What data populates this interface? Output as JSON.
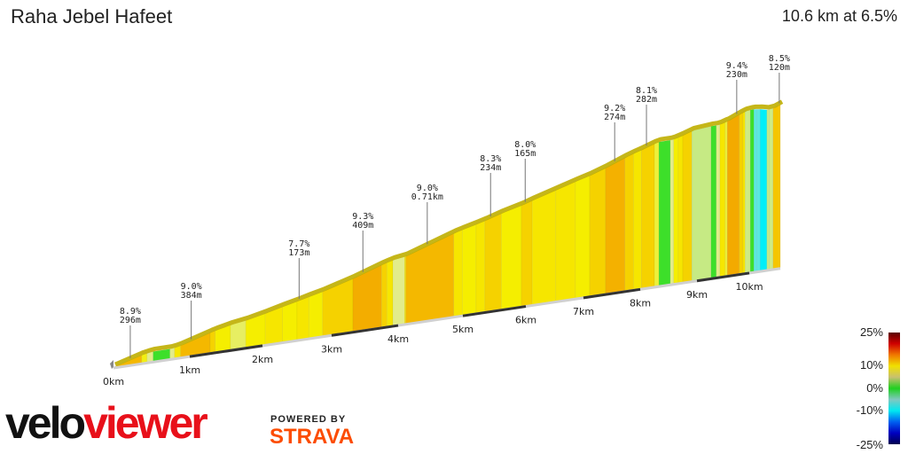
{
  "header": {
    "title": "Raha Jebel Hafeet",
    "summary": "10.6 km at 6.5%"
  },
  "branding": {
    "velo": "velo",
    "viewer": "viewer",
    "powered_by": "POWERED BY",
    "strava": "STRAVA",
    "strava_color": "#fc4c02",
    "viewer_color": "#e8101a"
  },
  "legend": {
    "labels": [
      "25%",
      "10%",
      "0%",
      "-10%",
      "-25%"
    ],
    "gradient_colors": [
      "#5a0000",
      "#d00000",
      "#f07800",
      "#f0e000",
      "#c8c070",
      "#20d020",
      "#80c8c0",
      "#00e8f0",
      "#0060f0",
      "#0000c0",
      "#000050"
    ]
  },
  "chart_data": {
    "type": "area",
    "title": "Raha Jebel Hafeet",
    "x_unit": "km",
    "x_ticks": [
      "0km",
      "1km",
      "2km",
      "3km",
      "4km",
      "5km",
      "6km",
      "7km",
      "8km",
      "9km",
      "10km"
    ],
    "xlim": [
      0,
      10.6
    ],
    "total_distance_km": 10.6,
    "average_gradient_pct": 6.5,
    "color_scale": [
      [
        -5,
        "#00eef8"
      ],
      [
        -3,
        "#5ae8e0"
      ],
      [
        0,
        "#3ddf2a"
      ],
      [
        2,
        "#c6ea84"
      ],
      [
        4,
        "#e2ec8a"
      ],
      [
        5,
        "#ecf03a"
      ],
      [
        6.5,
        "#f5ee00"
      ],
      [
        7,
        "#f6e600"
      ],
      [
        8,
        "#f5d200"
      ],
      [
        9,
        "#f4b800"
      ],
      [
        10,
        "#f29400"
      ]
    ],
    "segments_km_gradient": [
      [
        0,
        0.37,
        9
      ],
      [
        0.37,
        0.44,
        6
      ],
      [
        0.44,
        0.52,
        4
      ],
      [
        0.52,
        0.74,
        0
      ],
      [
        0.74,
        0.8,
        4
      ],
      [
        0.8,
        0.88,
        7
      ],
      [
        0.88,
        1.28,
        9
      ],
      [
        1.28,
        1.35,
        8
      ],
      [
        1.35,
        1.56,
        6.5
      ],
      [
        1.56,
        1.77,
        4.5
      ],
      [
        1.77,
        2.04,
        6.5
      ],
      [
        2.04,
        2.29,
        7
      ],
      [
        2.29,
        2.5,
        6.5
      ],
      [
        2.5,
        2.67,
        7
      ],
      [
        2.67,
        2.87,
        6.5
      ],
      [
        2.87,
        3.32,
        8
      ],
      [
        3.32,
        3.75,
        9.3
      ],
      [
        3.75,
        3.83,
        8
      ],
      [
        3.83,
        3.92,
        7
      ],
      [
        3.92,
        4.1,
        4
      ],
      [
        4.1,
        4.12,
        7
      ],
      [
        4.12,
        4.86,
        9
      ],
      [
        4.86,
        4.99,
        7
      ],
      [
        4.99,
        5.21,
        6.5
      ],
      [
        5.21,
        5.35,
        7
      ],
      [
        5.35,
        5.61,
        8
      ],
      [
        5.61,
        5.93,
        6.5
      ],
      [
        5.93,
        6.11,
        8
      ],
      [
        6.11,
        6.52,
        7
      ],
      [
        6.52,
        6.86,
        7
      ],
      [
        6.86,
        7.11,
        6.5
      ],
      [
        7.11,
        7.39,
        8
      ],
      [
        7.39,
        7.73,
        9.2
      ],
      [
        7.73,
        7.88,
        8
      ],
      [
        7.88,
        8.02,
        7
      ],
      [
        8.02,
        8.25,
        8
      ],
      [
        8.25,
        8.33,
        5
      ],
      [
        8.33,
        8.53,
        0
      ],
      [
        8.53,
        8.59,
        4
      ],
      [
        8.59,
        8.67,
        6.5
      ],
      [
        8.67,
        8.75,
        7
      ],
      [
        8.75,
        8.91,
        8
      ],
      [
        8.91,
        9.27,
        2
      ],
      [
        9.27,
        9.37,
        0
      ],
      [
        9.37,
        9.44,
        4
      ],
      [
        9.44,
        9.54,
        7
      ],
      [
        9.54,
        9.58,
        5
      ],
      [
        9.58,
        9.81,
        9.4
      ],
      [
        9.81,
        9.88,
        8
      ],
      [
        9.88,
        9.92,
        7
      ],
      [
        9.92,
        10.02,
        2.5
      ],
      [
        10.02,
        10.09,
        0
      ],
      [
        10.09,
        10.15,
        -3
      ],
      [
        10.15,
        10.21,
        -3
      ],
      [
        10.21,
        10.34,
        -5
      ],
      [
        10.34,
        10.39,
        2
      ],
      [
        10.39,
        10.46,
        2.5
      ],
      [
        10.46,
        10.6,
        8.5
      ]
    ],
    "annotations": [
      {
        "km": 0.22,
        "gradient": "8.9%",
        "length": "296m"
      },
      {
        "km": 1.02,
        "gradient": "9.0%",
        "length": "384m"
      },
      {
        "km": 2.53,
        "gradient": "7.7%",
        "length": "173m"
      },
      {
        "km": 3.47,
        "gradient": "9.3%",
        "length": "409m"
      },
      {
        "km": 4.45,
        "gradient": "9.0%",
        "length": "0.71km"
      },
      {
        "km": 5.44,
        "gradient": "8.3%",
        "length": "234m"
      },
      {
        "km": 5.99,
        "gradient": "8.0%",
        "length": "165m"
      },
      {
        "km": 7.55,
        "gradient": "9.2%",
        "length": "274m"
      },
      {
        "km": 8.11,
        "gradient": "8.1%",
        "length": "282m"
      },
      {
        "km": 9.76,
        "gradient": "9.4%",
        "length": "230m"
      },
      {
        "km": 10.58,
        "gradient": "8.5%",
        "length": "120m"
      }
    ]
  }
}
